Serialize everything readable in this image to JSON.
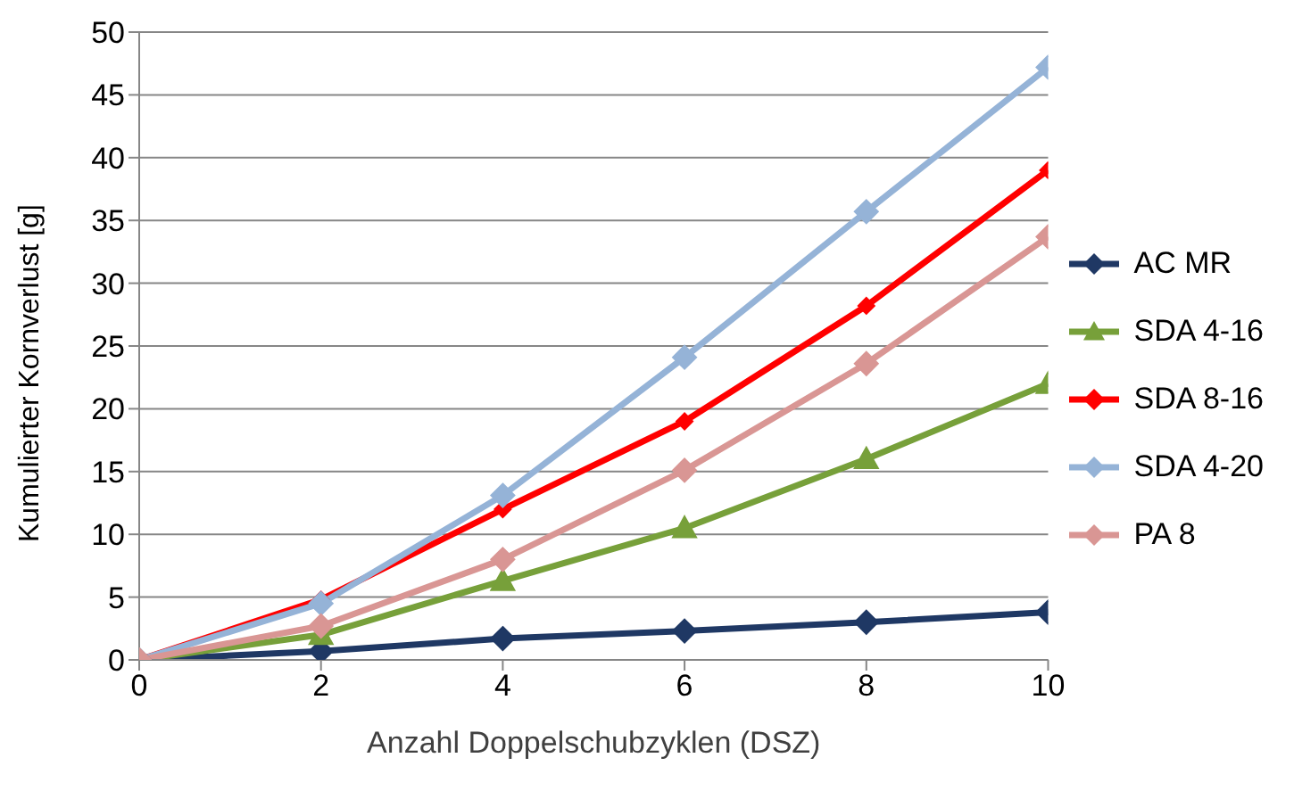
{
  "chart_data": {
    "type": "line",
    "xlabel": "Anzahl Doppelschubzyklen (DSZ)",
    "ylabel": "Kumulierter Kornverlust [g]",
    "x": [
      0,
      2,
      4,
      6,
      8,
      10
    ],
    "xlim": [
      0,
      10
    ],
    "xticks": [
      0,
      2,
      4,
      6,
      8,
      10
    ],
    "ylim": [
      0,
      50
    ],
    "yticks": [
      0,
      5,
      10,
      15,
      20,
      25,
      30,
      35,
      40,
      45,
      50
    ],
    "grid": "y",
    "legend": "right",
    "line_style": "solid",
    "series": [
      {
        "name": "AC MR",
        "color": "#1f3864",
        "marker": "diamond",
        "values": [
          0,
          0.7,
          1.7,
          2.3,
          3.0,
          3.8
        ]
      },
      {
        "name": "SDA 4-16",
        "color": "#77a03a",
        "marker": "triangle",
        "values": [
          0,
          2.0,
          6.3,
          10.5,
          16.0,
          22.0
        ]
      },
      {
        "name": "SDA 8-16",
        "color": "#ff0000",
        "marker": "diamond",
        "values": [
          0,
          4.8,
          12.0,
          19.0,
          28.2,
          39.0
        ]
      },
      {
        "name": "SDA 4-20",
        "color": "#95b3d7",
        "marker": "diamond",
        "values": [
          0,
          4.5,
          13.1,
          24.1,
          35.7,
          47.2
        ]
      },
      {
        "name": "PA 8",
        "color": "#d99694",
        "marker": "diamond",
        "values": [
          0,
          2.7,
          8.0,
          15.1,
          23.6,
          33.7
        ]
      }
    ]
  }
}
